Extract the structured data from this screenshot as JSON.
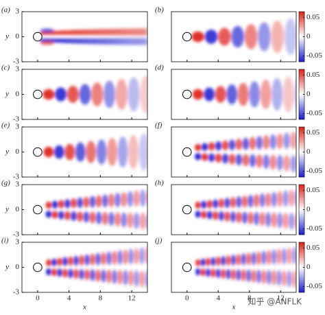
{
  "figure": {
    "panels": [
      {
        "label": "(a)"
      },
      {
        "label": "(b)"
      },
      {
        "label": "(c)"
      },
      {
        "label": "(d)"
      },
      {
        "label": "(e)"
      },
      {
        "label": "(f)"
      },
      {
        "label": "(g)"
      },
      {
        "label": "(h)"
      },
      {
        "label": "(i)"
      },
      {
        "label": "(j)"
      }
    ],
    "xlabel": "x",
    "ylabel": "y",
    "xlim": [
      -2,
      14
    ],
    "ylim": [
      -3,
      3
    ],
    "xticks": [
      0,
      4,
      8,
      12
    ],
    "yticks": [
      3,
      0,
      -3
    ],
    "colorbar_lim": [
      -0.065,
      0.065
    ],
    "colorbar_ticks": [
      0.05,
      0,
      -0.05
    ],
    "watermark": "知乎 @ANFLK"
  }
}
